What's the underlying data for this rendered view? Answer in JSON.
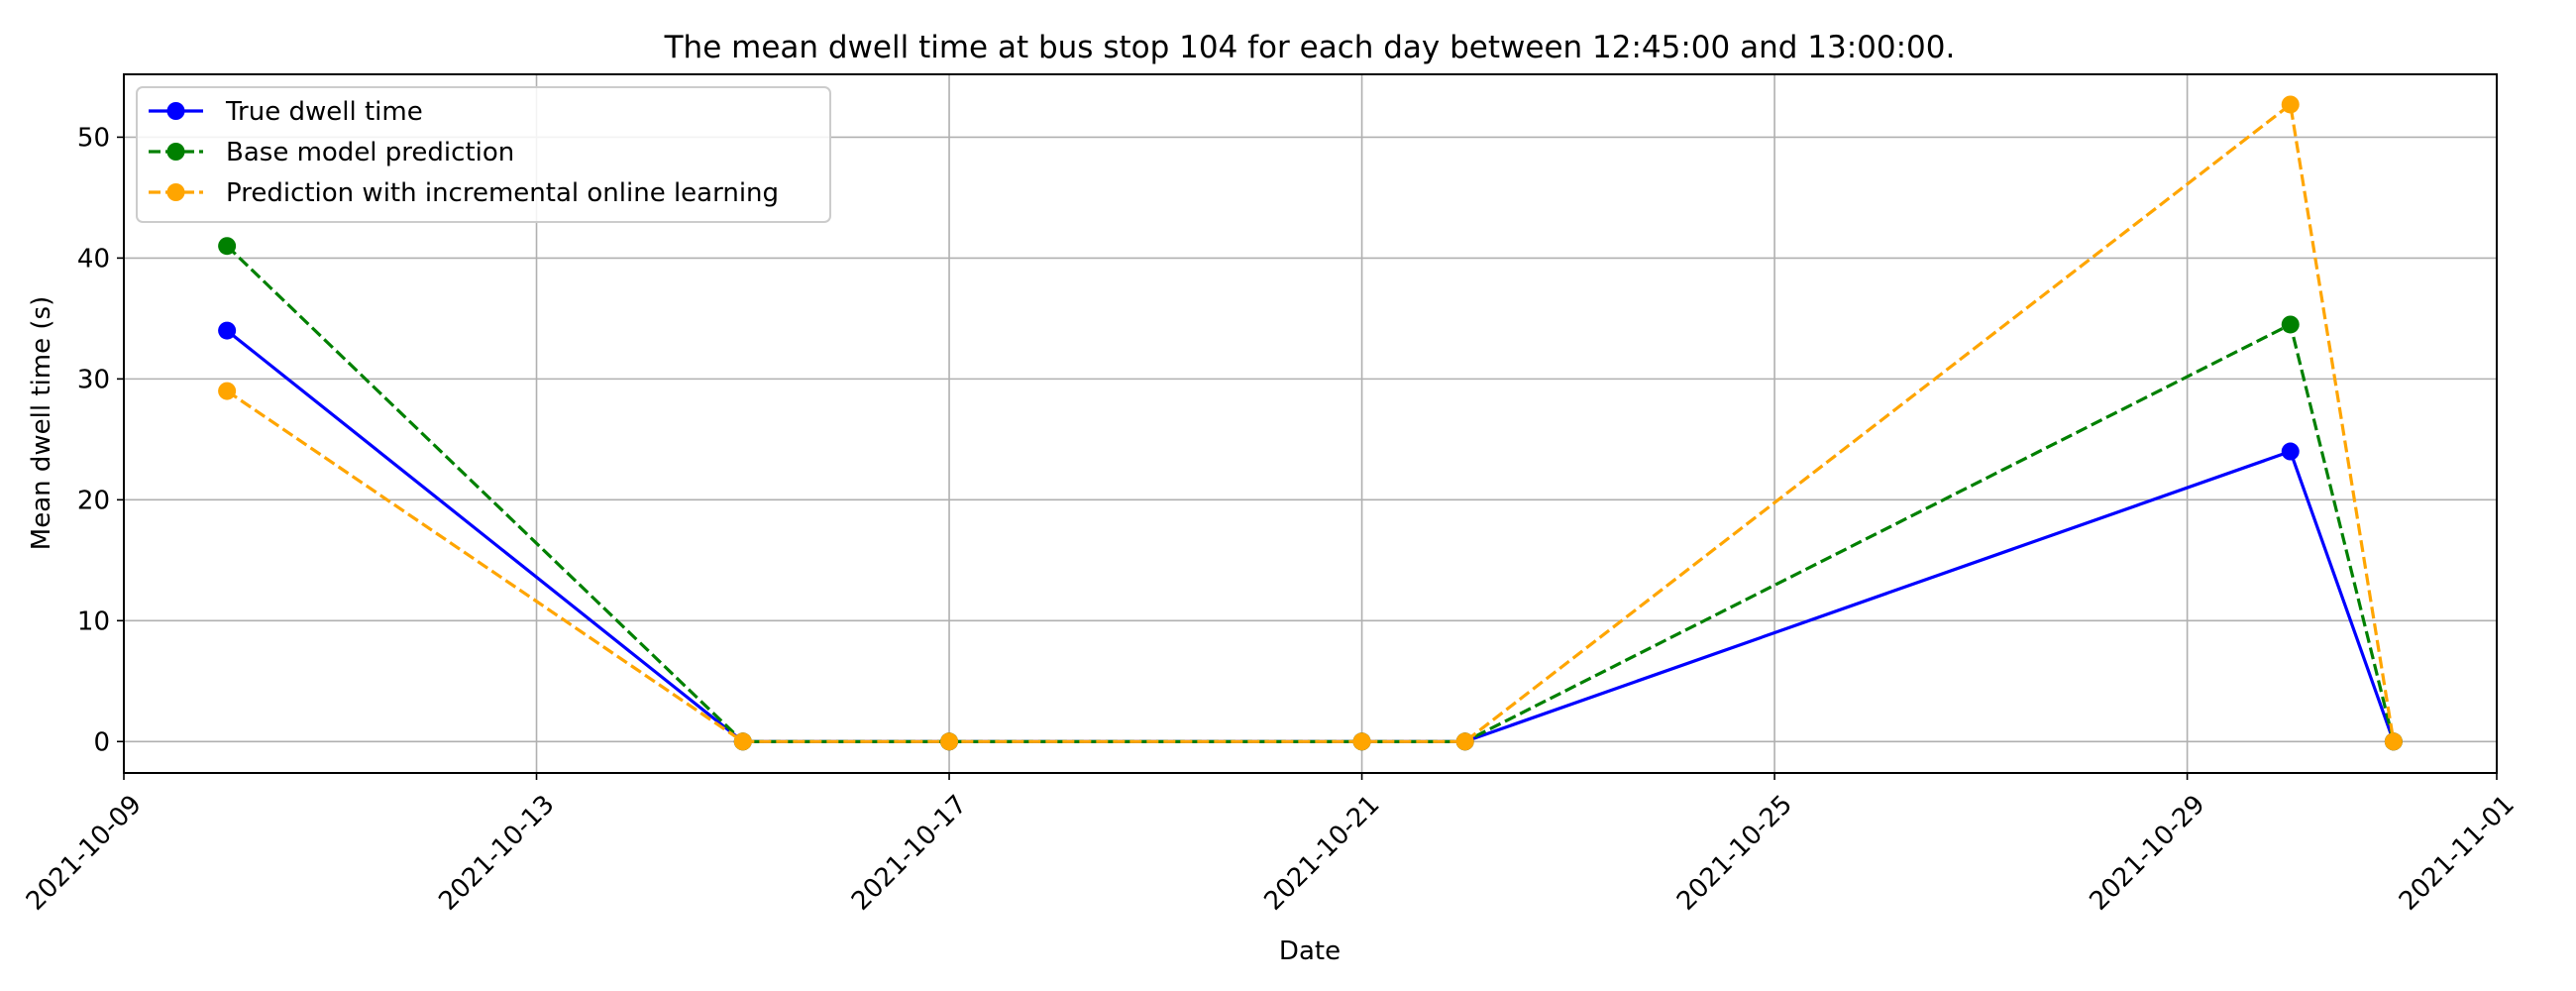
{
  "chart_data": {
    "type": "line",
    "title": "The mean dwell time at bus stop 104 for each day between 12:45:00 and 13:00:00.",
    "xlabel": "Date",
    "ylabel": "Mean dwell time (s)",
    "x": [
      "2021-10-10",
      "2021-10-15",
      "2021-10-17",
      "2021-10-21",
      "2021-10-22",
      "2021-10-30",
      "2021-10-31"
    ],
    "x_tick_labels": [
      "2021-10-09",
      "2021-10-13",
      "2021-10-17",
      "2021-10-21",
      "2021-10-25",
      "2021-10-29",
      "2021-11-01"
    ],
    "y_tick_labels": [
      "0",
      "10",
      "20",
      "30",
      "40",
      "50"
    ],
    "ylim": [
      -2.6,
      55.2
    ],
    "xlim": [
      "2021-10-09",
      "2021-11-01"
    ],
    "grid": true,
    "legend_position": "upper left",
    "series": [
      {
        "name": "True dwell time",
        "values": [
          34,
          0,
          0,
          0,
          0,
          24,
          0
        ],
        "color": "#0000ff",
        "line_style": "solid",
        "marker": "circle"
      },
      {
        "name": "Base model prediction",
        "values": [
          41,
          0,
          0,
          0,
          0,
          34.5,
          0
        ],
        "color": "#008000",
        "line_style": "dashed",
        "marker": "circle"
      },
      {
        "name": "Prediction with incremental online learning",
        "values": [
          29,
          0,
          0,
          0,
          0,
          52.7,
          0
        ],
        "color": "#ffa500",
        "line_style": "dashed",
        "marker": "circle"
      }
    ],
    "colors": {
      "grid": "#b0b0b0",
      "axes": "#000000",
      "legend_border": "#cccccc"
    }
  }
}
